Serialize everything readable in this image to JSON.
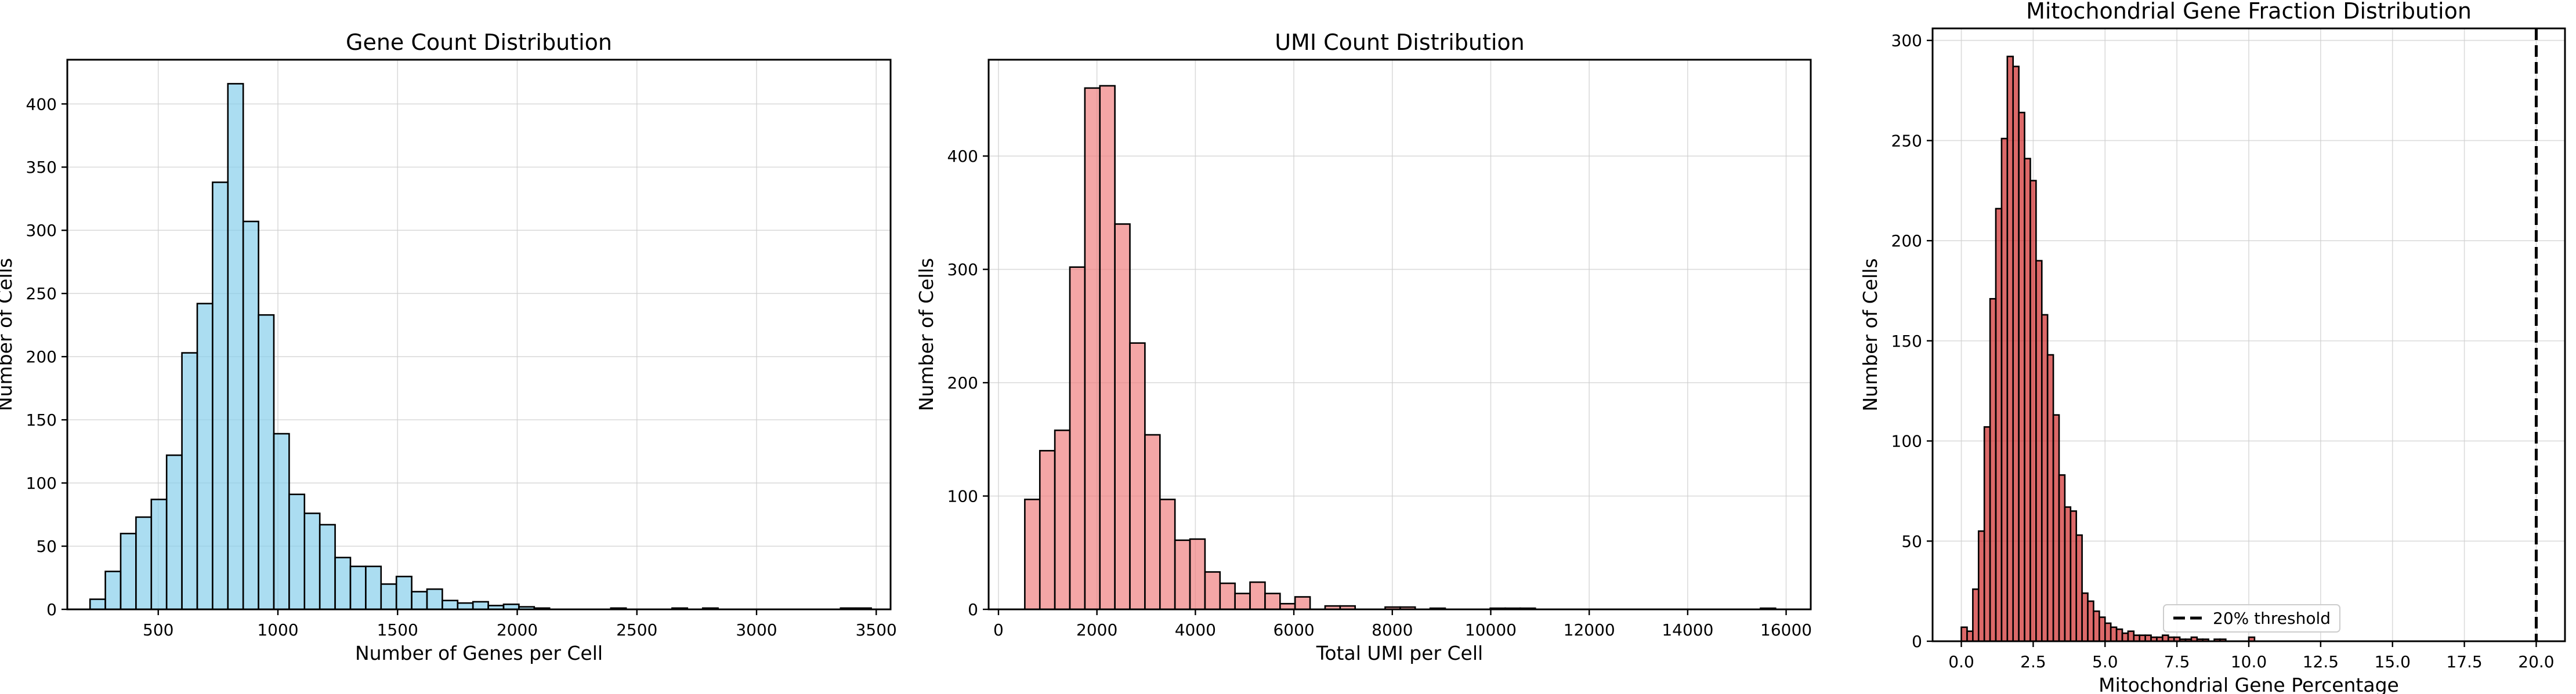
{
  "chart_data": [
    {
      "type": "bar",
      "title": "Gene Count Distribution",
      "xlabel": "Number of Genes per Cell",
      "ylabel": "Number of Cells",
      "xlim": [
        120,
        3560
      ],
      "ylim": [
        0,
        435
      ],
      "xticks": [
        500,
        1000,
        1500,
        2000,
        2500,
        3000,
        3500
      ],
      "yticks": [
        0,
        50,
        100,
        150,
        200,
        250,
        300,
        350,
        400
      ],
      "grid": true,
      "color": "#87CEEB",
      "edgecolor": "#000000",
      "bin_width": 64,
      "bins": [
        {
          "x": 215,
          "value": 8
        },
        {
          "x": 279,
          "value": 30
        },
        {
          "x": 343,
          "value": 60
        },
        {
          "x": 407,
          "value": 73
        },
        {
          "x": 471,
          "value": 87
        },
        {
          "x": 535,
          "value": 122
        },
        {
          "x": 599,
          "value": 203
        },
        {
          "x": 663,
          "value": 242
        },
        {
          "x": 727,
          "value": 338
        },
        {
          "x": 791,
          "value": 416
        },
        {
          "x": 855,
          "value": 307
        },
        {
          "x": 919,
          "value": 233
        },
        {
          "x": 983,
          "value": 139
        },
        {
          "x": 1047,
          "value": 91
        },
        {
          "x": 1111,
          "value": 76
        },
        {
          "x": 1175,
          "value": 67
        },
        {
          "x": 1239,
          "value": 41
        },
        {
          "x": 1303,
          "value": 34
        },
        {
          "x": 1367,
          "value": 34
        },
        {
          "x": 1431,
          "value": 20
        },
        {
          "x": 1495,
          "value": 26
        },
        {
          "x": 1559,
          "value": 14
        },
        {
          "x": 1623,
          "value": 16
        },
        {
          "x": 1687,
          "value": 7
        },
        {
          "x": 1751,
          "value": 5
        },
        {
          "x": 1815,
          "value": 6
        },
        {
          "x": 1879,
          "value": 3
        },
        {
          "x": 1943,
          "value": 4
        },
        {
          "x": 2007,
          "value": 2
        },
        {
          "x": 2071,
          "value": 1
        },
        {
          "x": 2135,
          "value": 0
        },
        {
          "x": 2199,
          "value": 0
        },
        {
          "x": 2263,
          "value": 0
        },
        {
          "x": 2327,
          "value": 0
        },
        {
          "x": 2391,
          "value": 1
        },
        {
          "x": 2455,
          "value": 0
        },
        {
          "x": 2519,
          "value": 0
        },
        {
          "x": 2583,
          "value": 0
        },
        {
          "x": 2647,
          "value": 1
        },
        {
          "x": 2711,
          "value": 0
        },
        {
          "x": 2775,
          "value": 1
        },
        {
          "x": 2839,
          "value": 0
        },
        {
          "x": 2903,
          "value": 0
        },
        {
          "x": 2967,
          "value": 0
        },
        {
          "x": 3031,
          "value": 0
        },
        {
          "x": 3095,
          "value": 0
        },
        {
          "x": 3159,
          "value": 0
        },
        {
          "x": 3223,
          "value": 0
        },
        {
          "x": 3287,
          "value": 0
        },
        {
          "x": 3351,
          "value": 1
        },
        {
          "x": 3415,
          "value": 1
        }
      ]
    },
    {
      "type": "bar",
      "title": "UMI Count Distribution",
      "xlabel": "Total UMI per Cell",
      "ylabel": "Number of Cells",
      "xlim": [
        -200,
        16500
      ],
      "ylim": [
        0,
        485
      ],
      "xticks": [
        0,
        2000,
        4000,
        6000,
        8000,
        10000,
        12000,
        14000,
        16000
      ],
      "yticks": [
        0,
        100,
        200,
        300,
        400
      ],
      "grid": true,
      "color": "#F08080",
      "edgecolor": "#000000",
      "bin_width": 305,
      "bins": [
        {
          "x": 535,
          "value": 97
        },
        {
          "x": 840,
          "value": 140
        },
        {
          "x": 1145,
          "value": 158
        },
        {
          "x": 1450,
          "value": 302
        },
        {
          "x": 1755,
          "value": 460
        },
        {
          "x": 2060,
          "value": 462
        },
        {
          "x": 2365,
          "value": 340
        },
        {
          "x": 2670,
          "value": 235
        },
        {
          "x": 2975,
          "value": 154
        },
        {
          "x": 3280,
          "value": 97
        },
        {
          "x": 3585,
          "value": 61
        },
        {
          "x": 3890,
          "value": 62
        },
        {
          "x": 4195,
          "value": 33
        },
        {
          "x": 4500,
          "value": 23
        },
        {
          "x": 4805,
          "value": 14
        },
        {
          "x": 5110,
          "value": 24
        },
        {
          "x": 5415,
          "value": 14
        },
        {
          "x": 5720,
          "value": 5
        },
        {
          "x": 6025,
          "value": 11
        },
        {
          "x": 6330,
          "value": 0
        },
        {
          "x": 6635,
          "value": 3
        },
        {
          "x": 6940,
          "value": 3
        },
        {
          "x": 7245,
          "value": 0
        },
        {
          "x": 7550,
          "value": 0
        },
        {
          "x": 7855,
          "value": 2
        },
        {
          "x": 8160,
          "value": 2
        },
        {
          "x": 8465,
          "value": 0
        },
        {
          "x": 8770,
          "value": 1
        },
        {
          "x": 9075,
          "value": 0
        },
        {
          "x": 9380,
          "value": 0
        },
        {
          "x": 9685,
          "value": 0
        },
        {
          "x": 9990,
          "value": 1
        },
        {
          "x": 10295,
          "value": 1
        },
        {
          "x": 10600,
          "value": 1
        },
        {
          "x": 10905,
          "value": 0
        },
        {
          "x": 11210,
          "value": 0
        },
        {
          "x": 11515,
          "value": 0
        },
        {
          "x": 11820,
          "value": 0
        },
        {
          "x": 12125,
          "value": 0
        },
        {
          "x": 12430,
          "value": 0
        },
        {
          "x": 12735,
          "value": 0
        },
        {
          "x": 13040,
          "value": 0
        },
        {
          "x": 13345,
          "value": 0
        },
        {
          "x": 13650,
          "value": 0
        },
        {
          "x": 13955,
          "value": 0
        },
        {
          "x": 14260,
          "value": 0
        },
        {
          "x": 14565,
          "value": 0
        },
        {
          "x": 14870,
          "value": 0
        },
        {
          "x": 15175,
          "value": 0
        },
        {
          "x": 15480,
          "value": 1
        }
      ]
    },
    {
      "type": "bar",
      "title": "Mitochondrial Gene Fraction Distribution",
      "xlabel": "Mitochondrial Gene Percentage",
      "ylabel": "Number of Cells",
      "xlim": [
        -1,
        21
      ],
      "ylim": [
        0,
        306
      ],
      "xticks": [
        0.0,
        2.5,
        5.0,
        7.5,
        10.0,
        12.5,
        15.0,
        17.5,
        20.0
      ],
      "yticks": [
        0,
        50,
        100,
        150,
        200,
        250,
        300
      ],
      "grid": true,
      "color": "#CD2A2A",
      "edgecolor": "#000000",
      "bin_width": 0.2,
      "threshold": {
        "x": 20.0,
        "label": "20% threshold"
      },
      "legend_position": "lower-center",
      "bins": [
        {
          "x": 0.0,
          "value": 7
        },
        {
          "x": 0.2,
          "value": 5
        },
        {
          "x": 0.4,
          "value": 26
        },
        {
          "x": 0.6,
          "value": 55
        },
        {
          "x": 0.8,
          "value": 107
        },
        {
          "x": 1.0,
          "value": 171
        },
        {
          "x": 1.2,
          "value": 216
        },
        {
          "x": 1.4,
          "value": 251
        },
        {
          "x": 1.6,
          "value": 292
        },
        {
          "x": 1.8,
          "value": 287
        },
        {
          "x": 2.0,
          "value": 264
        },
        {
          "x": 2.2,
          "value": 241
        },
        {
          "x": 2.4,
          "value": 230
        },
        {
          "x": 2.6,
          "value": 190
        },
        {
          "x": 2.8,
          "value": 163
        },
        {
          "x": 3.0,
          "value": 143
        },
        {
          "x": 3.2,
          "value": 113
        },
        {
          "x": 3.4,
          "value": 83
        },
        {
          "x": 3.6,
          "value": 67
        },
        {
          "x": 3.8,
          "value": 65
        },
        {
          "x": 4.0,
          "value": 53
        },
        {
          "x": 4.2,
          "value": 24
        },
        {
          "x": 4.4,
          "value": 20
        },
        {
          "x": 4.6,
          "value": 15
        },
        {
          "x": 4.8,
          "value": 12
        },
        {
          "x": 5.0,
          "value": 9
        },
        {
          "x": 5.2,
          "value": 7
        },
        {
          "x": 5.4,
          "value": 6
        },
        {
          "x": 5.6,
          "value": 4
        },
        {
          "x": 5.8,
          "value": 5
        },
        {
          "x": 6.0,
          "value": 3
        },
        {
          "x": 6.2,
          "value": 3
        },
        {
          "x": 6.4,
          "value": 3
        },
        {
          "x": 6.6,
          "value": 2
        },
        {
          "x": 6.8,
          "value": 2
        },
        {
          "x": 7.0,
          "value": 3
        },
        {
          "x": 7.2,
          "value": 2
        },
        {
          "x": 7.4,
          "value": 2
        },
        {
          "x": 7.6,
          "value": 1
        },
        {
          "x": 7.8,
          "value": 1
        },
        {
          "x": 8.0,
          "value": 2
        },
        {
          "x": 8.2,
          "value": 1
        },
        {
          "x": 8.4,
          "value": 1
        },
        {
          "x": 8.6,
          "value": 0
        },
        {
          "x": 8.8,
          "value": 1
        },
        {
          "x": 9.0,
          "value": 1
        },
        {
          "x": 9.2,
          "value": 0
        },
        {
          "x": 9.4,
          "value": 0
        },
        {
          "x": 9.6,
          "value": 0
        },
        {
          "x": 9.8,
          "value": 0
        },
        {
          "x": 10.0,
          "value": 2
        }
      ]
    }
  ]
}
